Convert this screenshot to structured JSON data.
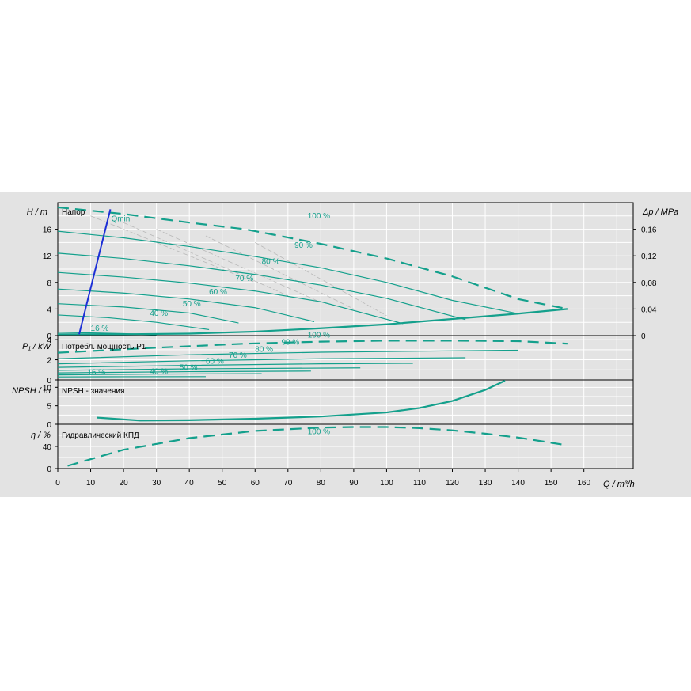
{
  "colors": {
    "curve": "#14a08c",
    "qmin": "#1c2fd6",
    "grid": "#ffffff",
    "panel": "#e3e3e3",
    "axis": "#000000",
    "ghost": "#b8b8b8"
  },
  "labels": {
    "head_axis": "H / m",
    "dp_axis": "Δp / MPa",
    "power_axis": "P₁ / kW",
    "npsh_axis": "NPSH / m",
    "eff_axis": "η / %",
    "q_axis": "Q / m³/h",
    "head_title": "Напор",
    "power_title": "Потребл. мощность P1",
    "npsh_title": "NPSH - значения",
    "eff_title": "Гидравлический КПД",
    "qmin": "Qmin"
  },
  "chart_data": [
    {
      "type": "line",
      "title": "Напор",
      "ylabel": "H / m",
      "y2label": "Δp / MPa",
      "xlim": [
        0,
        175
      ],
      "ylim": [
        0,
        20
      ],
      "yticks": [
        0,
        4,
        8,
        12,
        16
      ],
      "y2ticks": [
        "0",
        "0,04",
        "0,08",
        "0,12",
        "0,16"
      ],
      "grid": true,
      "series": [
        {
          "name": "100 %",
          "x": [
            0,
            20,
            40,
            57,
            80,
            100,
            120,
            140,
            155
          ],
          "y": [
            19.3,
            18.3,
            17.0,
            16.0,
            13.8,
            11.6,
            8.9,
            5.5,
            4.0
          ]
        },
        {
          "name": "90 %",
          "x": [
            0,
            20,
            40,
            60,
            80,
            100,
            120,
            140
          ],
          "y": [
            15.7,
            14.7,
            13.4,
            11.9,
            10.2,
            8.0,
            5.3,
            3.3
          ]
        },
        {
          "name": "80 %",
          "x": [
            0,
            20,
            40,
            60,
            80,
            100,
            124
          ],
          "y": [
            12.4,
            11.6,
            10.5,
            9.2,
            7.6,
            5.6,
            2.4
          ]
        },
        {
          "name": "70 %",
          "x": [
            0,
            20,
            40,
            60,
            80,
            105
          ],
          "y": [
            9.5,
            8.8,
            7.9,
            6.7,
            5.1,
            1.8
          ]
        },
        {
          "name": "60 %",
          "x": [
            0,
            20,
            40,
            60,
            78
          ],
          "y": [
            7.0,
            6.4,
            5.5,
            4.2,
            2.1
          ]
        },
        {
          "name": "50 %",
          "x": [
            0,
            20,
            40,
            55
          ],
          "y": [
            4.8,
            4.3,
            3.4,
            1.9
          ]
        },
        {
          "name": "40 %",
          "x": [
            0,
            15,
            30,
            46
          ],
          "y": [
            3.1,
            2.7,
            2.0,
            0.9
          ]
        },
        {
          "name": "16 %",
          "x": [
            0,
            10,
            20,
            30
          ],
          "y": [
            0.5,
            0.4,
            0.3,
            0.1
          ]
        },
        {
          "name": "",
          "x": [
            0,
            20,
            40,
            60,
            80,
            100,
            120,
            140,
            155
          ],
          "y": [
            0.2,
            0.2,
            0.3,
            0.6,
            1.1,
            1.7,
            2.5,
            3.3,
            4.0
          ]
        }
      ],
      "annotations": [
        "100 %",
        "90 %",
        "80 %",
        "70 %",
        "60 %",
        "50 %",
        "40 %",
        "16 %",
        "Qmin"
      ],
      "qmin_line": {
        "x": [
          6.5,
          16
        ],
        "y": [
          0.2,
          19
        ]
      }
    },
    {
      "type": "line",
      "title": "Потребл. мощность P1",
      "ylabel": "P₁ / kW",
      "xlim": [
        0,
        175
      ],
      "ylim": [
        0,
        4.4
      ],
      "yticks": [
        0,
        2,
        4
      ],
      "grid": true,
      "series": [
        {
          "name": "100 %",
          "x": [
            0,
            30,
            57,
            80,
            100,
            120,
            140,
            155
          ],
          "y": [
            2.7,
            3.2,
            3.6,
            3.8,
            3.9,
            3.9,
            3.85,
            3.6
          ]
        },
        {
          "name": "90 %",
          "x": [
            0,
            40,
            80,
            140
          ],
          "y": [
            2.1,
            2.5,
            2.75,
            2.95
          ]
        },
        {
          "name": "80 %",
          "x": [
            0,
            40,
            80,
            124
          ],
          "y": [
            1.6,
            1.9,
            2.1,
            2.2
          ]
        },
        {
          "name": "70 %",
          "x": [
            0,
            40,
            80,
            108
          ],
          "y": [
            1.25,
            1.45,
            1.6,
            1.65
          ]
        },
        {
          "name": "60 %",
          "x": [
            0,
            40,
            92
          ],
          "y": [
            0.95,
            1.1,
            1.2
          ]
        },
        {
          "name": "50 %",
          "x": [
            0,
            40,
            77
          ],
          "y": [
            0.7,
            0.82,
            0.88
          ]
        },
        {
          "name": "40 %",
          "x": [
            0,
            30,
            62
          ],
          "y": [
            0.5,
            0.58,
            0.62
          ]
        },
        {
          "name": "16 %",
          "x": [
            0,
            20,
            45
          ],
          "y": [
            0.3,
            0.32,
            0.33
          ]
        }
      ],
      "annotations": [
        "100 %",
        "90 %",
        "80 %",
        "70 %",
        "60 %",
        "50 %",
        "40 %",
        "16 %"
      ]
    },
    {
      "type": "line",
      "title": "NPSH - значения",
      "ylabel": "NPSH / m",
      "xlim": [
        0,
        175
      ],
      "ylim": [
        0,
        12
      ],
      "yticks": [
        0,
        5,
        10
      ],
      "grid": true,
      "series": [
        {
          "name": "",
          "x": [
            12,
            25,
            40,
            60,
            80,
            100,
            110,
            120,
            130,
            136
          ],
          "y": [
            1.8,
            1.0,
            1.1,
            1.5,
            2.1,
            3.2,
            4.4,
            6.3,
            9.3,
            11.8
          ]
        }
      ]
    },
    {
      "type": "line",
      "title": "Гидравлический КПД",
      "ylabel": "η / %",
      "xlim": [
        0,
        175
      ],
      "ylim": [
        0,
        80
      ],
      "yticks": [
        0,
        40
      ],
      "grid": true,
      "series": [
        {
          "name": "100 %",
          "x": [
            3,
            20,
            40,
            60,
            80,
            90,
            100,
            110,
            120,
            130,
            140,
            155
          ],
          "y": [
            5,
            34,
            55,
            68,
            74,
            75,
            75,
            73,
            69,
            63,
            56,
            42
          ]
        }
      ],
      "annotations": [
        "100 %"
      ]
    }
  ],
  "x_axis": {
    "ticks": [
      0,
      10,
      20,
      30,
      40,
      50,
      60,
      70,
      80,
      90,
      100,
      110,
      120,
      130,
      140,
      150,
      160
    ],
    "label": "Q / m³/h"
  }
}
